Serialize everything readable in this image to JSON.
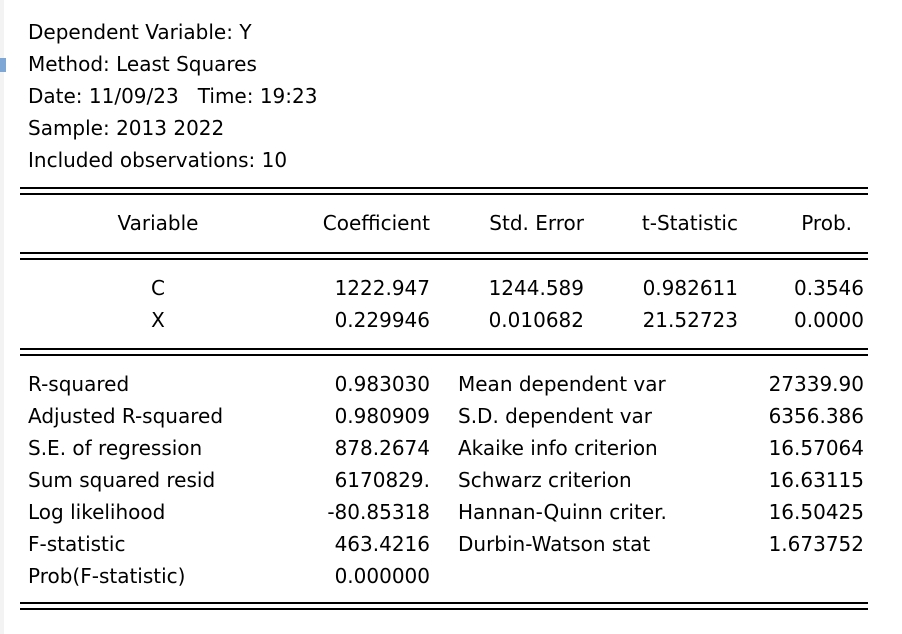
{
  "header": {
    "dependent": "Dependent Variable: Y",
    "method": "Method: Least Squares",
    "datetime": "Date: 11/09/23   Time: 19:23",
    "sample": "Sample: 2013 2022",
    "observations": "Included observations: 10"
  },
  "columns": [
    "Variable",
    "Coefficient",
    "Std. Error",
    "t-Statistic",
    "Prob."
  ],
  "coefficients": [
    {
      "variable": "C",
      "coefficient": "1222.947",
      "std_error": "1244.589",
      "t_statistic": "0.982611",
      "prob": "0.3546"
    },
    {
      "variable": "X",
      "coefficient": "0.229946",
      "std_error": "0.010682",
      "t_statistic": "21.52723",
      "prob": "0.0000"
    }
  ],
  "stats": [
    {
      "label": "R-squared",
      "value": "0.983030",
      "label2": "Mean dependent var",
      "value2": "27339.90"
    },
    {
      "label": "Adjusted R-squared",
      "value": "0.980909",
      "label2": "S.D. dependent var",
      "value2": "6356.386"
    },
    {
      "label": "S.E. of regression",
      "value": "878.2674",
      "label2": "Akaike info criterion",
      "value2": "16.57064"
    },
    {
      "label": "Sum squared resid",
      "value": "6170829.",
      "label2": "Schwarz criterion",
      "value2": "16.63115"
    },
    {
      "label": "Log likelihood",
      "value": "-80.85318",
      "label2": "Hannan-Quinn criter.",
      "value2": "16.50425"
    },
    {
      "label": "F-statistic",
      "value": "463.4216",
      "label2": "Durbin-Watson stat",
      "value2": "1.673752"
    },
    {
      "label": "Prob(F-statistic)",
      "value": "0.000000",
      "label2": "",
      "value2": ""
    }
  ]
}
